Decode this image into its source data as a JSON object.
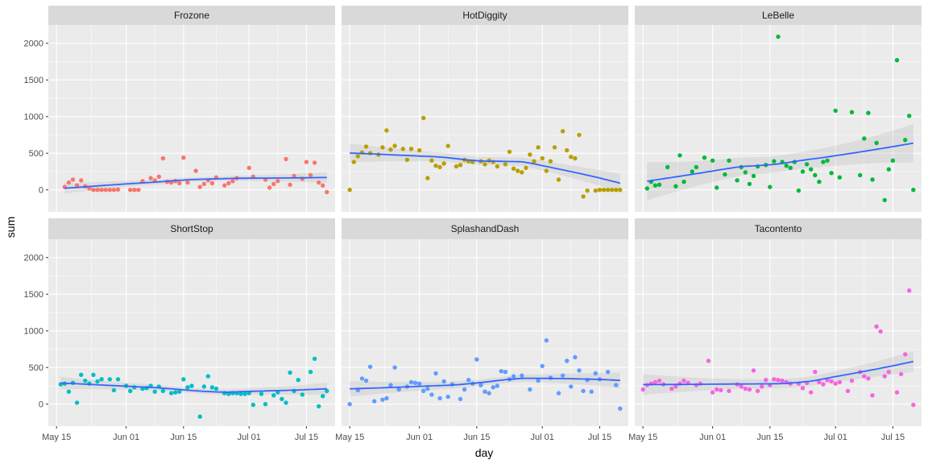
{
  "chart_data": {
    "type": "scatter",
    "facets": [
      "Frozone",
      "HotDiggity",
      "LeBelle",
      "ShortStop",
      "SplashandDash",
      "Tacontento"
    ],
    "xlabel": "day",
    "ylabel": "sum",
    "x_ticks": [
      "May 15",
      "Jun 01",
      "Jun 15",
      "Jul 01",
      "Jul 15"
    ],
    "y_ticks": [
      "0",
      "500",
      "1000",
      "1500",
      "2000"
    ],
    "xlim": [
      "2019-05-13",
      "2019-07-22"
    ],
    "ylim": [
      -300,
      2250
    ],
    "grid": true,
    "smooth": "loess trend line with confidence band",
    "colors": {
      "Frozone": "#F8766D",
      "HotDiggity": "#B79F00",
      "LeBelle": "#00BA38",
      "ShortStop": "#00BFC4",
      "SplashandDash": "#619CFF",
      "Tacontento": "#F564E3",
      "smooth_line": "#3366FF",
      "panel_bg": "#EBEBEB",
      "strip_bg": "#D9D9D9"
    },
    "series": [
      {
        "x": [
          "2019-05-17",
          "2019-05-18",
          "2019-05-19",
          "2019-05-20",
          "2019-05-21",
          "2019-05-22",
          "2019-05-23",
          "2019-05-24",
          "2019-05-25",
          "2019-05-26",
          "2019-05-27",
          "2019-05-28",
          "2019-05-29",
          "2019-05-30",
          "2019-06-02",
          "2019-06-03",
          "2019-06-04",
          "2019-06-05",
          "2019-06-07",
          "2019-06-08",
          "2019-06-09",
          "2019-06-10",
          "2019-06-11",
          "2019-06-12",
          "2019-06-13",
          "2019-06-14",
          "2019-06-15",
          "2019-06-16",
          "2019-06-18",
          "2019-06-19",
          "2019-06-20",
          "2019-06-21",
          "2019-06-22",
          "2019-06-23",
          "2019-06-25",
          "2019-06-26",
          "2019-06-27",
          "2019-06-28",
          "2019-07-01",
          "2019-07-02",
          "2019-07-05",
          "2019-07-06",
          "2019-07-07",
          "2019-07-08",
          "2019-07-10",
          "2019-07-11",
          "2019-07-12",
          "2019-07-14",
          "2019-07-15",
          "2019-07-16",
          "2019-07-17",
          "2019-07-18",
          "2019-07-19",
          "2019-07-20"
        ],
        "y": [
          40,
          100,
          140,
          60,
          130,
          50,
          20,
          0,
          0,
          0,
          0,
          0,
          0,
          5,
          0,
          0,
          0,
          120,
          160,
          130,
          180,
          430,
          110,
          100,
          120,
          90,
          440,
          100,
          260,
          40,
          80,
          130,
          90,
          170,
          60,
          90,
          120,
          160,
          300,
          180,
          140,
          30,
          80,
          120,
          420,
          70,
          190,
          150,
          380,
          200,
          370,
          100,
          60,
          -30
        ]
      },
      {
        "x": [
          "2019-05-15",
          "2019-05-16",
          "2019-05-17",
          "2019-05-18",
          "2019-05-19",
          "2019-05-20",
          "2019-05-22",
          "2019-05-23",
          "2019-05-24",
          "2019-05-25",
          "2019-05-26",
          "2019-05-28",
          "2019-05-29",
          "2019-05-30",
          "2019-06-01",
          "2019-06-02",
          "2019-06-03",
          "2019-06-04",
          "2019-06-05",
          "2019-06-06",
          "2019-06-07",
          "2019-06-08",
          "2019-06-10",
          "2019-06-11",
          "2019-06-12",
          "2019-06-13",
          "2019-06-14",
          "2019-06-16",
          "2019-06-17",
          "2019-06-18",
          "2019-06-19",
          "2019-06-20",
          "2019-06-22",
          "2019-06-23",
          "2019-06-24",
          "2019-06-25",
          "2019-06-26",
          "2019-06-27",
          "2019-06-28",
          "2019-06-29",
          "2019-06-30",
          "2019-07-01",
          "2019-07-02",
          "2019-07-03",
          "2019-07-04",
          "2019-07-05",
          "2019-07-06",
          "2019-07-07",
          "2019-07-08",
          "2019-07-09",
          "2019-07-10",
          "2019-07-11",
          "2019-07-12",
          "2019-07-14",
          "2019-07-15",
          "2019-07-16",
          "2019-07-17",
          "2019-07-18",
          "2019-07-19",
          "2019-07-20"
        ],
        "y": [
          0,
          380,
          460,
          510,
          590,
          500,
          480,
          580,
          810,
          550,
          600,
          560,
          410,
          560,
          540,
          980,
          160,
          400,
          330,
          310,
          360,
          600,
          320,
          340,
          410,
          390,
          380,
          390,
          350,
          400,
          380,
          320,
          350,
          520,
          290,
          260,
          240,
          300,
          480,
          390,
          580,
          430,
          260,
          390,
          580,
          140,
          800,
          540,
          450,
          430,
          750,
          -90,
          -10,
          -10,
          0,
          0,
          0,
          0,
          0,
          0
        ]
      },
      {
        "x": [
          "2019-05-16",
          "2019-05-17",
          "2019-05-18",
          "2019-05-19",
          "2019-05-21",
          "2019-05-23",
          "2019-05-24",
          "2019-05-25",
          "2019-05-27",
          "2019-05-28",
          "2019-05-30",
          "2019-06-01",
          "2019-06-02",
          "2019-06-04",
          "2019-06-05",
          "2019-06-07",
          "2019-06-08",
          "2019-06-09",
          "2019-06-10",
          "2019-06-11",
          "2019-06-12",
          "2019-06-14",
          "2019-06-15",
          "2019-06-16",
          "2019-06-17",
          "2019-06-18",
          "2019-06-19",
          "2019-06-20",
          "2019-06-21",
          "2019-06-22",
          "2019-06-23",
          "2019-06-24",
          "2019-06-25",
          "2019-06-26",
          "2019-06-27",
          "2019-06-28",
          "2019-06-29",
          "2019-06-30",
          "2019-07-01",
          "2019-07-02",
          "2019-07-05",
          "2019-07-07",
          "2019-07-08",
          "2019-07-09",
          "2019-07-10",
          "2019-07-11",
          "2019-07-13",
          "2019-07-14",
          "2019-07-15",
          "2019-07-16",
          "2019-07-18",
          "2019-07-19",
          "2019-07-20"
        ],
        "y": [
          20,
          110,
          60,
          70,
          310,
          50,
          470,
          110,
          250,
          310,
          440,
          400,
          30,
          210,
          400,
          130,
          310,
          240,
          80,
          190,
          320,
          340,
          40,
          390,
          2090,
          380,
          330,
          300,
          380,
          -10,
          250,
          350,
          280,
          200,
          110,
          380,
          400,
          230,
          1080,
          170,
          1060,
          200,
          700,
          1050,
          140,
          640,
          -140,
          280,
          400,
          1770,
          680,
          1010,
          0
        ]
      },
      {
        "x": [
          "2019-05-16",
          "2019-05-17",
          "2019-05-18",
          "2019-05-19",
          "2019-05-20",
          "2019-05-21",
          "2019-05-22",
          "2019-05-23",
          "2019-05-24",
          "2019-05-25",
          "2019-05-26",
          "2019-05-28",
          "2019-05-29",
          "2019-05-30",
          "2019-06-01",
          "2019-06-02",
          "2019-06-03",
          "2019-06-05",
          "2019-06-06",
          "2019-06-07",
          "2019-06-08",
          "2019-06-09",
          "2019-06-10",
          "2019-06-12",
          "2019-06-13",
          "2019-06-14",
          "2019-06-15",
          "2019-06-16",
          "2019-06-17",
          "2019-06-19",
          "2019-06-20",
          "2019-06-21",
          "2019-06-22",
          "2019-06-23",
          "2019-06-25",
          "2019-06-26",
          "2019-06-27",
          "2019-06-28",
          "2019-06-29",
          "2019-06-30",
          "2019-07-01",
          "2019-07-02",
          "2019-07-04",
          "2019-07-05",
          "2019-07-07",
          "2019-07-08",
          "2019-07-09",
          "2019-07-10",
          "2019-07-11",
          "2019-07-12",
          "2019-07-13",
          "2019-07-14",
          "2019-07-16",
          "2019-07-17",
          "2019-07-18",
          "2019-07-19",
          "2019-07-20"
        ],
        "y": [
          270,
          280,
          170,
          290,
          20,
          400,
          320,
          280,
          400,
          310,
          340,
          340,
          190,
          340,
          250,
          180,
          230,
          210,
          220,
          250,
          170,
          240,
          180,
          150,
          160,
          170,
          340,
          230,
          250,
          -170,
          240,
          380,
          230,
          210,
          150,
          140,
          150,
          150,
          140,
          140,
          150,
          -10,
          140,
          0,
          120,
          160,
          70,
          20,
          430,
          180,
          330,
          130,
          440,
          620,
          -30,
          110,
          180
        ]
      },
      {
        "x": [
          "2019-05-15",
          "2019-05-17",
          "2019-05-18",
          "2019-05-19",
          "2019-05-20",
          "2019-05-21",
          "2019-05-23",
          "2019-05-24",
          "2019-05-25",
          "2019-05-26",
          "2019-05-27",
          "2019-05-29",
          "2019-05-30",
          "2019-05-31",
          "2019-06-01",
          "2019-06-02",
          "2019-06-03",
          "2019-06-04",
          "2019-06-05",
          "2019-06-06",
          "2019-06-07",
          "2019-06-08",
          "2019-06-09",
          "2019-06-11",
          "2019-06-12",
          "2019-06-13",
          "2019-06-14",
          "2019-06-15",
          "2019-06-16",
          "2019-06-17",
          "2019-06-18",
          "2019-06-19",
          "2019-06-20",
          "2019-06-21",
          "2019-06-22",
          "2019-06-23",
          "2019-06-24",
          "2019-06-26",
          "2019-06-28",
          "2019-06-30",
          "2019-07-01",
          "2019-07-02",
          "2019-07-03",
          "2019-07-05",
          "2019-07-06",
          "2019-07-07",
          "2019-07-08",
          "2019-07-09",
          "2019-07-10",
          "2019-07-11",
          "2019-07-12",
          "2019-07-13",
          "2019-07-14",
          "2019-07-15",
          "2019-07-17",
          "2019-07-19",
          "2019-07-20"
        ],
        "y": [
          0,
          190,
          350,
          320,
          510,
          40,
          60,
          80,
          260,
          500,
          200,
          240,
          300,
          290,
          280,
          180,
          210,
          130,
          420,
          80,
          310,
          100,
          270,
          70,
          200,
          330,
          280,
          610,
          260,
          170,
          150,
          230,
          250,
          450,
          440,
          340,
          380,
          390,
          200,
          320,
          520,
          870,
          360,
          150,
          390,
          590,
          240,
          640,
          460,
          180,
          330,
          170,
          420,
          340,
          440,
          260,
          -60
        ]
      },
      {
        "x": [
          "2019-05-15",
          "2019-05-16",
          "2019-05-17",
          "2019-05-18",
          "2019-05-19",
          "2019-05-20",
          "2019-05-22",
          "2019-05-23",
          "2019-05-24",
          "2019-05-25",
          "2019-05-26",
          "2019-05-28",
          "2019-05-29",
          "2019-05-31",
          "2019-06-01",
          "2019-06-02",
          "2019-06-03",
          "2019-06-05",
          "2019-06-07",
          "2019-06-08",
          "2019-06-09",
          "2019-06-10",
          "2019-06-11",
          "2019-06-12",
          "2019-06-13",
          "2019-06-14",
          "2019-06-15",
          "2019-06-16",
          "2019-06-17",
          "2019-06-18",
          "2019-06-19",
          "2019-06-20",
          "2019-06-22",
          "2019-06-23",
          "2019-06-24",
          "2019-06-25",
          "2019-06-26",
          "2019-06-27",
          "2019-06-28",
          "2019-06-29",
          "2019-06-30",
          "2019-07-01",
          "2019-07-02",
          "2019-07-04",
          "2019-07-05",
          "2019-07-07",
          "2019-07-08",
          "2019-07-09",
          "2019-07-10",
          "2019-07-11",
          "2019-07-12",
          "2019-07-13",
          "2019-07-14",
          "2019-07-16",
          "2019-07-17",
          "2019-07-18",
          "2019-07-19",
          "2019-07-20"
        ],
        "y": [
          200,
          260,
          280,
          300,
          320,
          270,
          210,
          240,
          280,
          320,
          290,
          260,
          280,
          590,
          160,
          200,
          190,
          180,
          270,
          240,
          210,
          200,
          460,
          180,
          240,
          330,
          260,
          340,
          330,
          320,
          300,
          280,
          280,
          220,
          290,
          160,
          440,
          300,
          270,
          330,
          310,
          280,
          300,
          180,
          320,
          440,
          380,
          350,
          120,
          1060,
          990,
          380,
          440,
          160,
          410,
          680,
          1550,
          -10
        ]
      }
    ]
  }
}
